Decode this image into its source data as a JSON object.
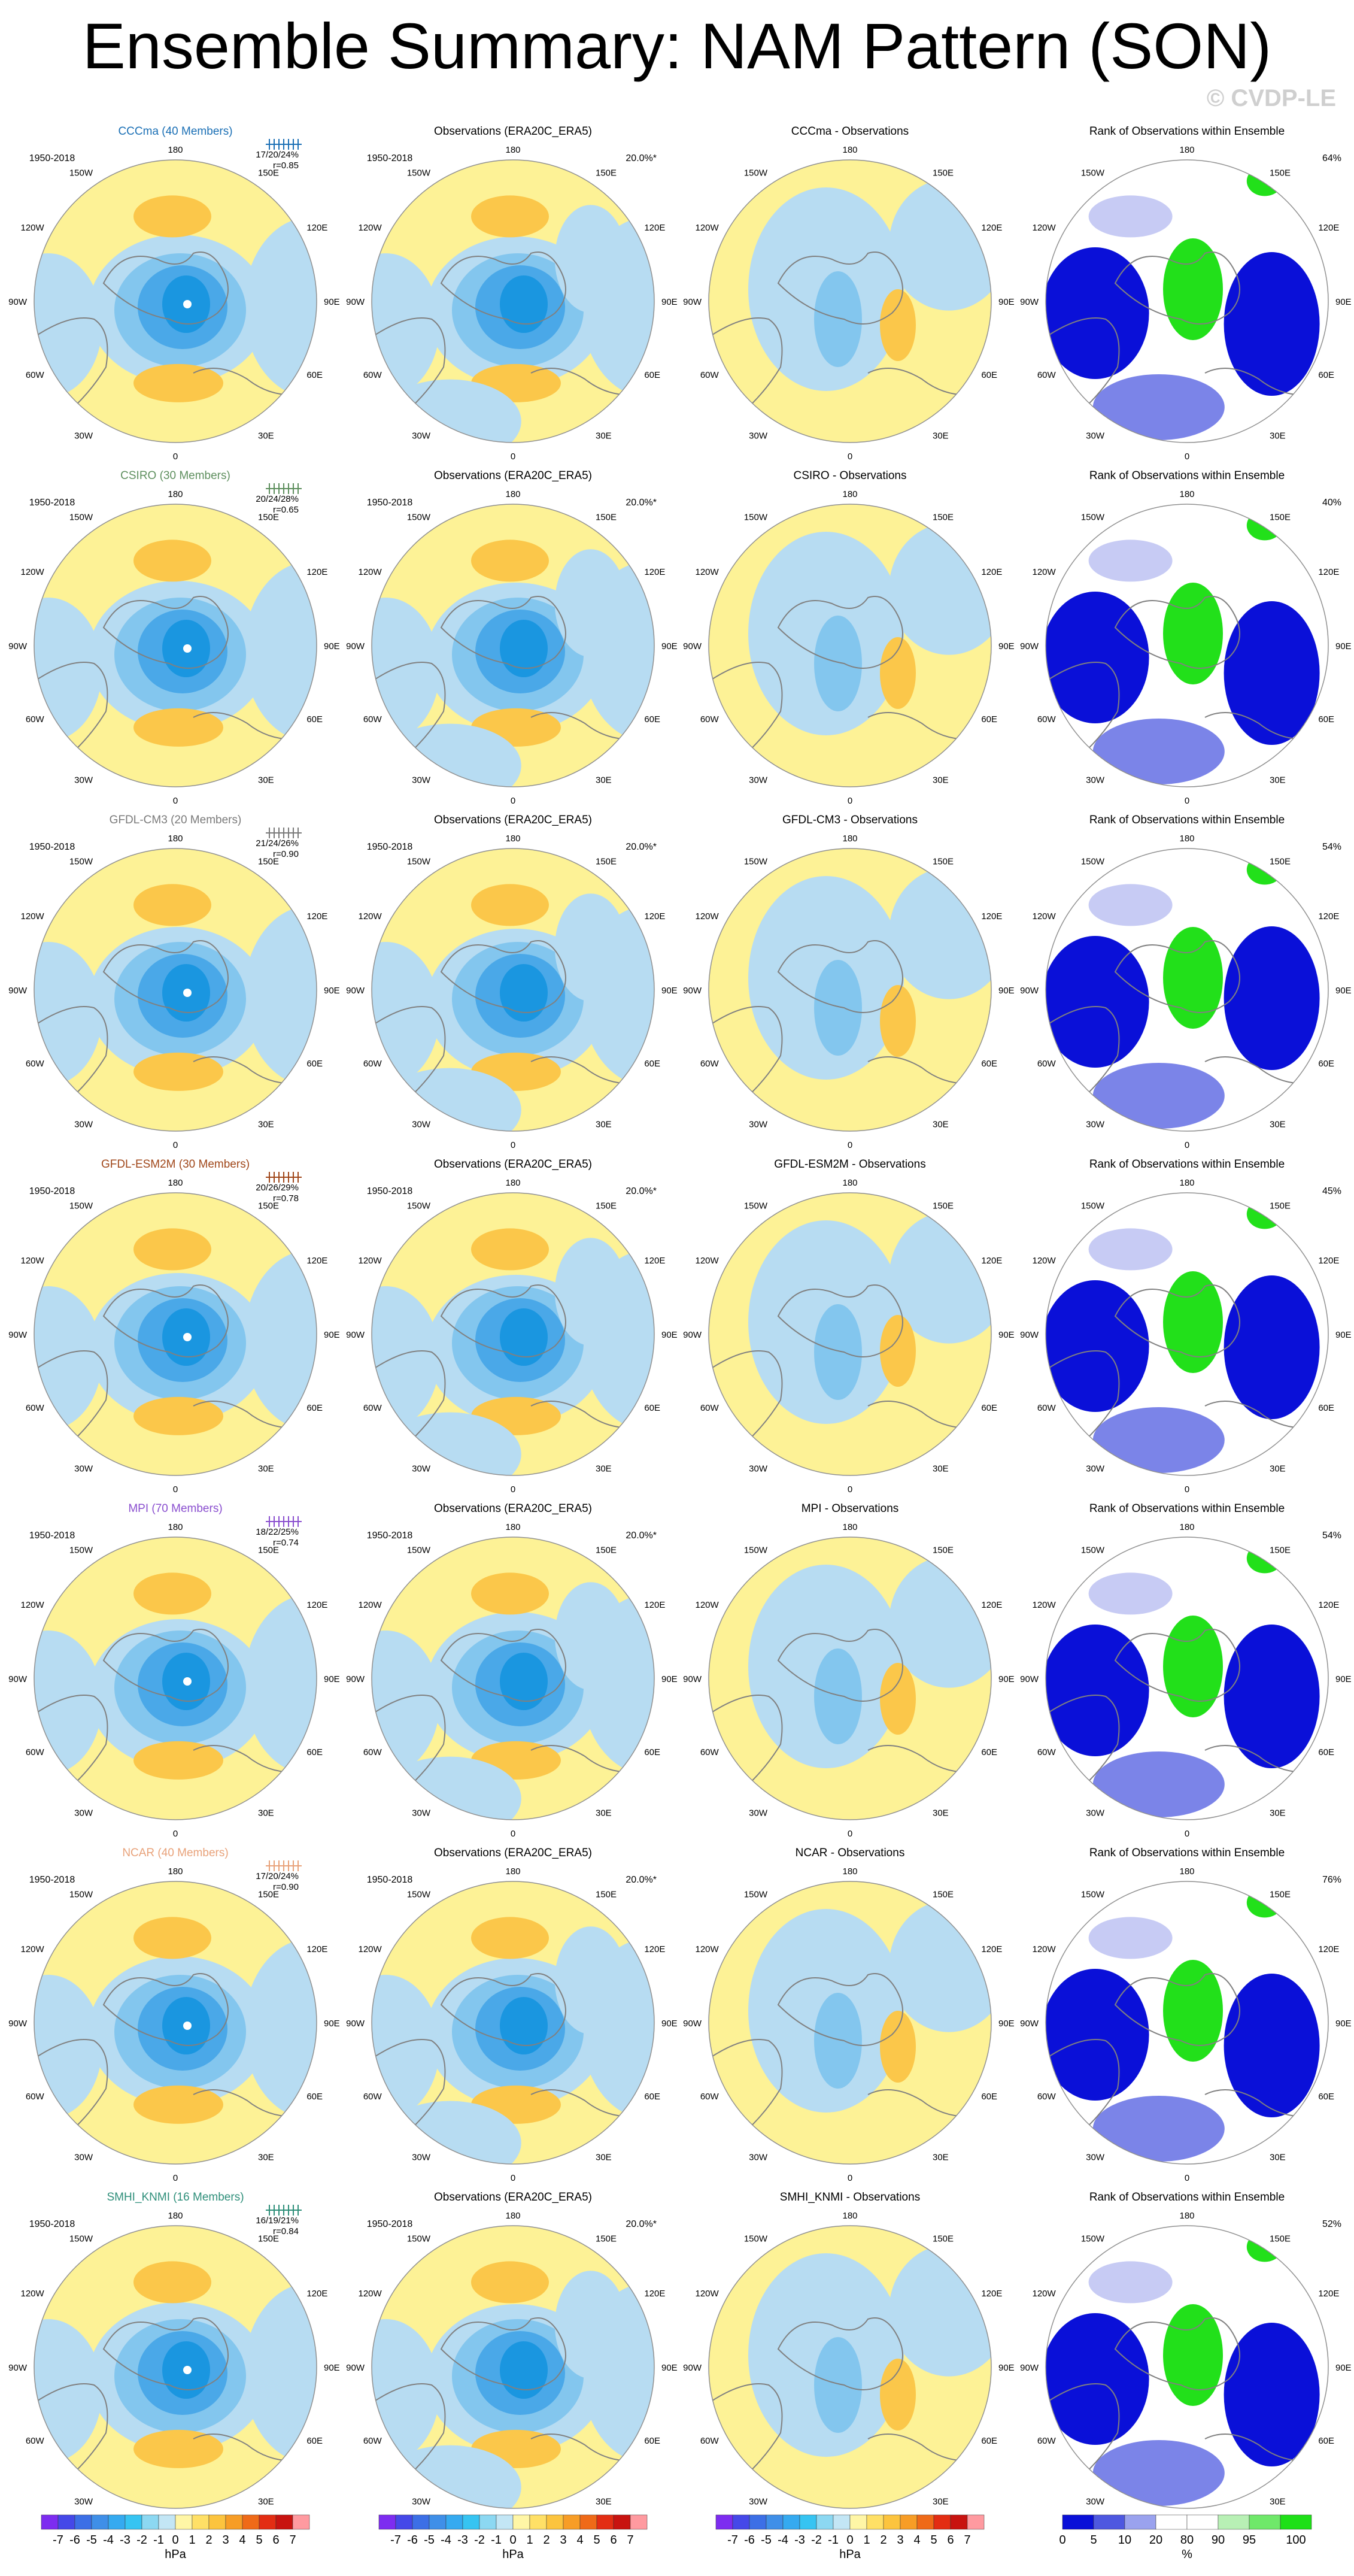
{
  "page": {
    "title": "Ensemble Summary: NAM Pattern (SON)",
    "watermark": "© CVDP-LE"
  },
  "map_labels": {
    "lon_top": "180",
    "lon_bottom": "0",
    "lon_150w": "150W",
    "lon_150e": "150E",
    "lon_120w": "120W",
    "lon_120e": "120E",
    "lon_90w": "90W",
    "lon_90e": "90E",
    "lon_60w": "60W",
    "lon_60e": "60E",
    "lon_30w": "30W",
    "lon_30e": "30E"
  },
  "chart_data": {
    "type": "heatmap",
    "colors": {
      "pos1": "#fdf296",
      "pos2": "#fbc74a",
      "pos3": "#f5a623",
      "neg1": "#b7dcf2",
      "neg2": "#83c6ee",
      "neg3": "#4aa8e8",
      "neg4": "#1a96e0",
      "neg5": "#1e6fd9",
      "rank_low": "#0a10d8",
      "rank_mid": "#7b84e8",
      "rank_light": "#c7cbf4",
      "rank_high": "#22e01a",
      "rank_high_light": "#a6efa3",
      "coast": "#808080"
    },
    "rows": [
      {
        "model_title": "CCCma (40 Members)",
        "model_color": "#1a6fb5",
        "period": "1950-2018",
        "stats": "17/20/24%",
        "r": "r=0.85",
        "obs_title": "Observations (ERA20C_ERA5)",
        "obs_pct": "20.0%*",
        "diff_title": "CCCma - Observations",
        "rank_title": "Rank of Observations within Ensemble",
        "rank_pct": "64%"
      },
      {
        "model_title": "CSIRO (30 Members)",
        "model_color": "#5e8f5e",
        "period": "1950-2018",
        "stats": "20/24/28%",
        "r": "r=0.65",
        "obs_title": "Observations (ERA20C_ERA5)",
        "obs_pct": "20.0%*",
        "diff_title": "CSIRO - Observations",
        "rank_title": "Rank of Observations within Ensemble",
        "rank_pct": "40%"
      },
      {
        "model_title": "GFDL-CM3 (20 Members)",
        "model_color": "#7a7a7a",
        "period": "1950-2018",
        "stats": "21/24/26%",
        "r": "r=0.90",
        "obs_title": "Observations (ERA20C_ERA5)",
        "obs_pct": "20.0%*",
        "diff_title": "GFDL-CM3 - Observations",
        "rank_title": "Rank of Observations within Ensemble",
        "rank_pct": "54%"
      },
      {
        "model_title": "GFDL-ESM2M (30 Members)",
        "model_color": "#a0471a",
        "period": "1950-2018",
        "stats": "20/26/29%",
        "r": "r=0.78",
        "obs_title": "Observations (ERA20C_ERA5)",
        "obs_pct": "20.0%*",
        "diff_title": "GFDL-ESM2M - Observations",
        "rank_title": "Rank of Observations within Ensemble",
        "rank_pct": "45%"
      },
      {
        "model_title": "MPI (70 Members)",
        "model_color": "#8a4fcf",
        "period": "1950-2018",
        "stats": "18/22/25%",
        "r": "r=0.74",
        "obs_title": "Observations (ERA20C_ERA5)",
        "obs_pct": "20.0%*",
        "diff_title": "MPI - Observations",
        "rank_title": "Rank of Observations within Ensemble",
        "rank_pct": "54%"
      },
      {
        "model_title": "NCAR (40 Members)",
        "model_color": "#e8a27a",
        "period": "1950-2018",
        "stats": "17/20/24%",
        "r": "r=0.90",
        "obs_title": "Observations (ERA20C_ERA5)",
        "obs_pct": "20.0%*",
        "diff_title": "NCAR - Observations",
        "rank_title": "Rank of Observations within Ensemble",
        "rank_pct": "76%"
      },
      {
        "model_title": "SMHI_KNMI (16 Members)",
        "model_color": "#2f8f7a",
        "period": "1950-2018",
        "stats": "16/19/21%",
        "r": "r=0.84",
        "obs_title": "Observations (ERA20C_ERA5)",
        "obs_pct": "20.0%*",
        "diff_title": "SMHI_KNMI - Observations",
        "rank_title": "Rank of Observations within Ensemble",
        "rank_pct": "52%"
      }
    ],
    "hpa_colorbar": {
      "ticks": [
        "-7",
        "-6",
        "-5",
        "-4",
        "-3",
        "-2",
        "-1",
        "0",
        "1",
        "2",
        "3",
        "4",
        "5",
        "6",
        "7"
      ],
      "colors": [
        "#7d2cf0",
        "#4548e8",
        "#3c6fe6",
        "#3f8fe8",
        "#35aaf0",
        "#36c4f2",
        "#8cd8f2",
        "#c3e6f5",
        "#fff6a6",
        "#ffe066",
        "#fcc43e",
        "#f79d26",
        "#ef6a18",
        "#e32d13",
        "#c81310",
        "#ff9aa0"
      ],
      "unit": "hPa"
    },
    "rank_colorbar": {
      "ticks": [
        "0",
        "5",
        "10",
        "20",
        "80",
        "90",
        "95",
        "100"
      ],
      "colors": [
        "#0a10d8",
        "#4e58e0",
        "#9aa2ee",
        "#ffffff",
        "#ffffff",
        "#b8f0b5",
        "#6fe86a",
        "#1ee017"
      ],
      "unit": "%"
    }
  }
}
